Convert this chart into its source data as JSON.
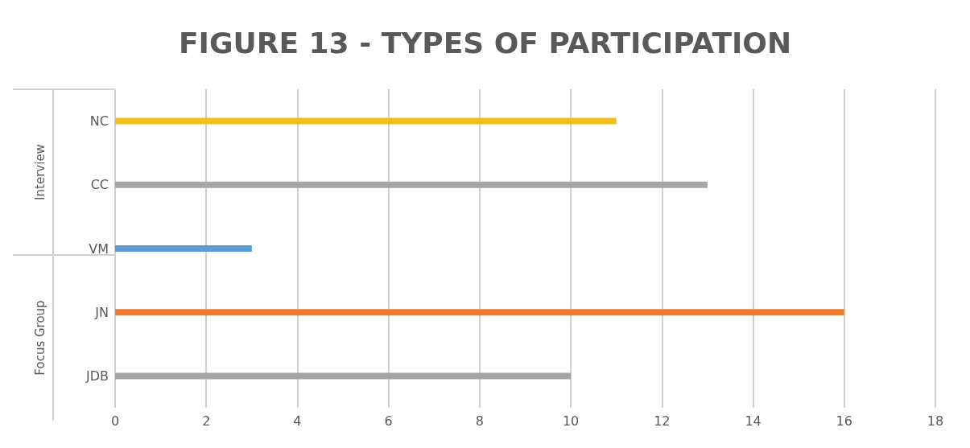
{
  "chart_data": {
    "type": "bar",
    "orientation": "horizontal",
    "title": "FIGURE 13 - TYPES OF PARTICIPATION",
    "categories": [
      "NC",
      "CC",
      "VM",
      "JN",
      "JDB"
    ],
    "values": [
      11,
      13,
      3,
      16,
      10
    ],
    "colors": [
      "#f2c019",
      "#a6a6a6",
      "#5b9bd5",
      "#ed7d31",
      "#a5a5a5"
    ],
    "xlim": [
      0,
      18
    ],
    "xticks": [
      0,
      2,
      4,
      6,
      8,
      10,
      12,
      14,
      16,
      18
    ],
    "grid": "x",
    "annotations": [
      "Interview",
      "Focus Group"
    ]
  }
}
